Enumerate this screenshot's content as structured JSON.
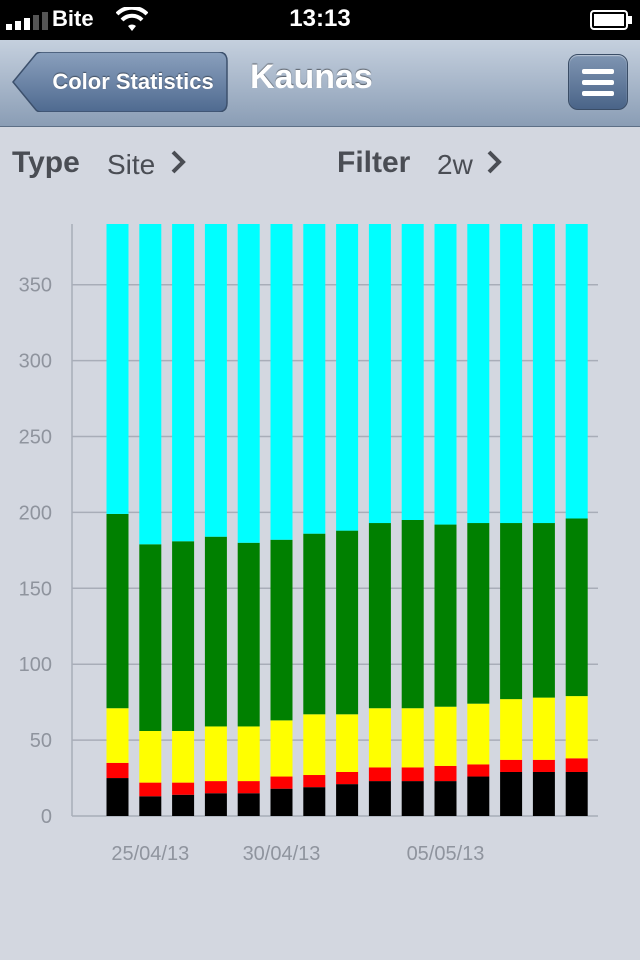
{
  "status_bar": {
    "carrier": "Bite",
    "time": "13:13",
    "icons": [
      "signal-icon",
      "wifi-icon",
      "battery-icon"
    ]
  },
  "nav": {
    "back_label": "Color Statistics",
    "title": "Kaunas",
    "menu_icon": "hamburger-menu-icon"
  },
  "controls": {
    "type_label": "Type",
    "type_value": "Site",
    "filter_label": "Filter",
    "filter_value": "2w"
  },
  "chart_data": {
    "type": "bar",
    "stacked": true,
    "categories": [
      "",
      "25/04/13",
      "",
      "",
      "",
      "30/04/13",
      "",
      "",
      "",
      "",
      "05/05/13",
      "",
      "",
      "",
      ""
    ],
    "x_tick_labels": [
      "25/04/13",
      "30/04/13",
      "05/05/13"
    ],
    "y_ticks": [
      0,
      50,
      100,
      150,
      200,
      250,
      300,
      350
    ],
    "ylim": [
      0,
      390
    ],
    "grid": true,
    "series": [
      {
        "color": "#000000",
        "values": [
          25,
          13,
          14,
          15,
          15,
          18,
          19,
          21,
          23,
          23,
          23,
          26,
          29,
          29,
          29
        ]
      },
      {
        "color": "#ff0000",
        "values": [
          10,
          9,
          8,
          8,
          8,
          8,
          8,
          8,
          9,
          9,
          10,
          8,
          8,
          8,
          9
        ]
      },
      {
        "color": "#ffff00",
        "values": [
          36,
          34,
          34,
          36,
          36,
          37,
          40,
          38,
          39,
          39,
          39,
          40,
          40,
          41,
          41
        ]
      },
      {
        "color": "#008000",
        "values": [
          128,
          123,
          125,
          125,
          121,
          119,
          119,
          121,
          122,
          124,
          120,
          119,
          116,
          115,
          117
        ]
      },
      {
        "color": "#00ffff",
        "values": [
          191,
          211,
          209,
          206,
          210,
          208,
          204,
          202,
          197,
          195,
          198,
          197,
          197,
          197,
          194
        ]
      }
    ]
  }
}
